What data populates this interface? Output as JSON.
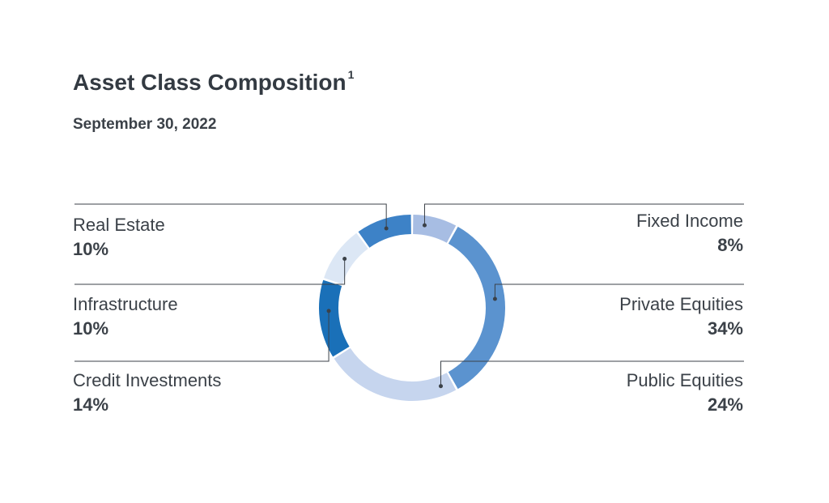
{
  "title": "Asset Class Composition",
  "title_note": "1",
  "subtitle": "September 30, 2022",
  "chart_data": {
    "type": "pie",
    "style": "donut",
    "title": "Asset Class Composition",
    "subtitle": "September 30, 2022",
    "slices": [
      {
        "label": "Fixed Income",
        "value": 8,
        "display": "8%",
        "color": "#a7bde3"
      },
      {
        "label": "Private Equities",
        "value": 34,
        "display": "34%",
        "color": "#5b93cf"
      },
      {
        "label": "Public Equities",
        "value": 24,
        "display": "24%",
        "color": "#c6d5ee"
      },
      {
        "label": "Credit Investments",
        "value": 14,
        "display": "14%",
        "color": "#1a70b8"
      },
      {
        "label": "Infrastructure",
        "value": 10,
        "display": "10%",
        "color": "#dce7f5"
      },
      {
        "label": "Real Estate",
        "value": 10,
        "display": "10%",
        "color": "#3d82c7"
      }
    ]
  }
}
